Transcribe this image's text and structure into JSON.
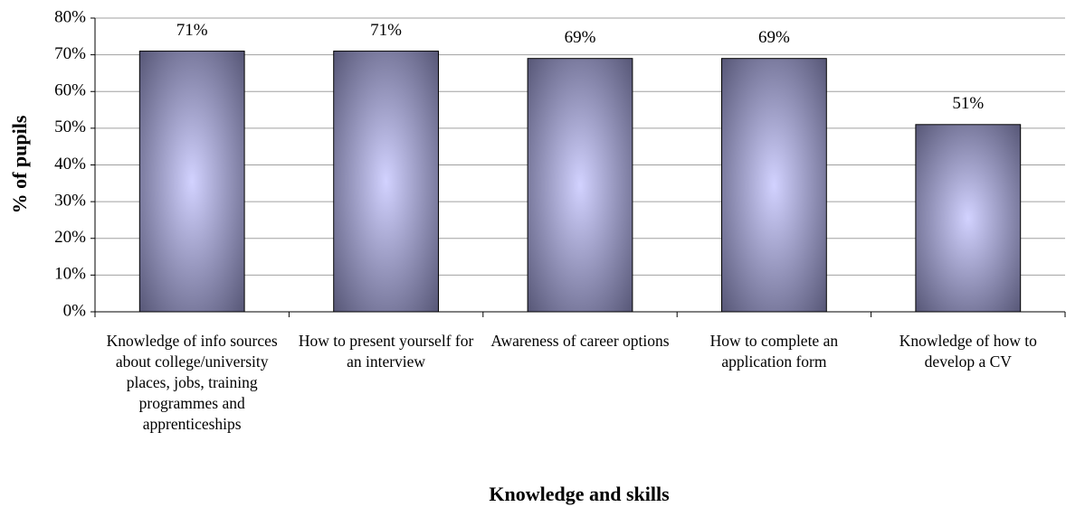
{
  "chart_data": {
    "type": "bar",
    "x_label": "Knowledge and skills",
    "y_label": "% of pupils",
    "categories": [
      "Knowledge of info sources about college/university places, jobs, training programmes and apprenticeships",
      "How to present yourself for an interview",
      "Awareness of career options",
      "How to complete an application form",
      "Knowledge of how to develop a CV"
    ],
    "values": [
      71,
      71,
      69,
      69,
      51
    ],
    "value_labels": [
      "71%",
      "71%",
      "69%",
      "69%",
      "51%"
    ],
    "color": "#4f4f6e",
    "ylim": [
      0,
      80
    ],
    "yticks": [
      {
        "value": 0,
        "label": "0%"
      },
      {
        "value": 10,
        "label": "10%"
      },
      {
        "value": 20,
        "label": "20%"
      },
      {
        "value": 30,
        "label": "30%"
      },
      {
        "value": 40,
        "label": "40%"
      },
      {
        "value": 50,
        "label": "50%"
      },
      {
        "value": 60,
        "label": "60%"
      },
      {
        "value": 70,
        "label": "70%"
      },
      {
        "value": 80,
        "label": "80%"
      }
    ],
    "grid": true
  }
}
